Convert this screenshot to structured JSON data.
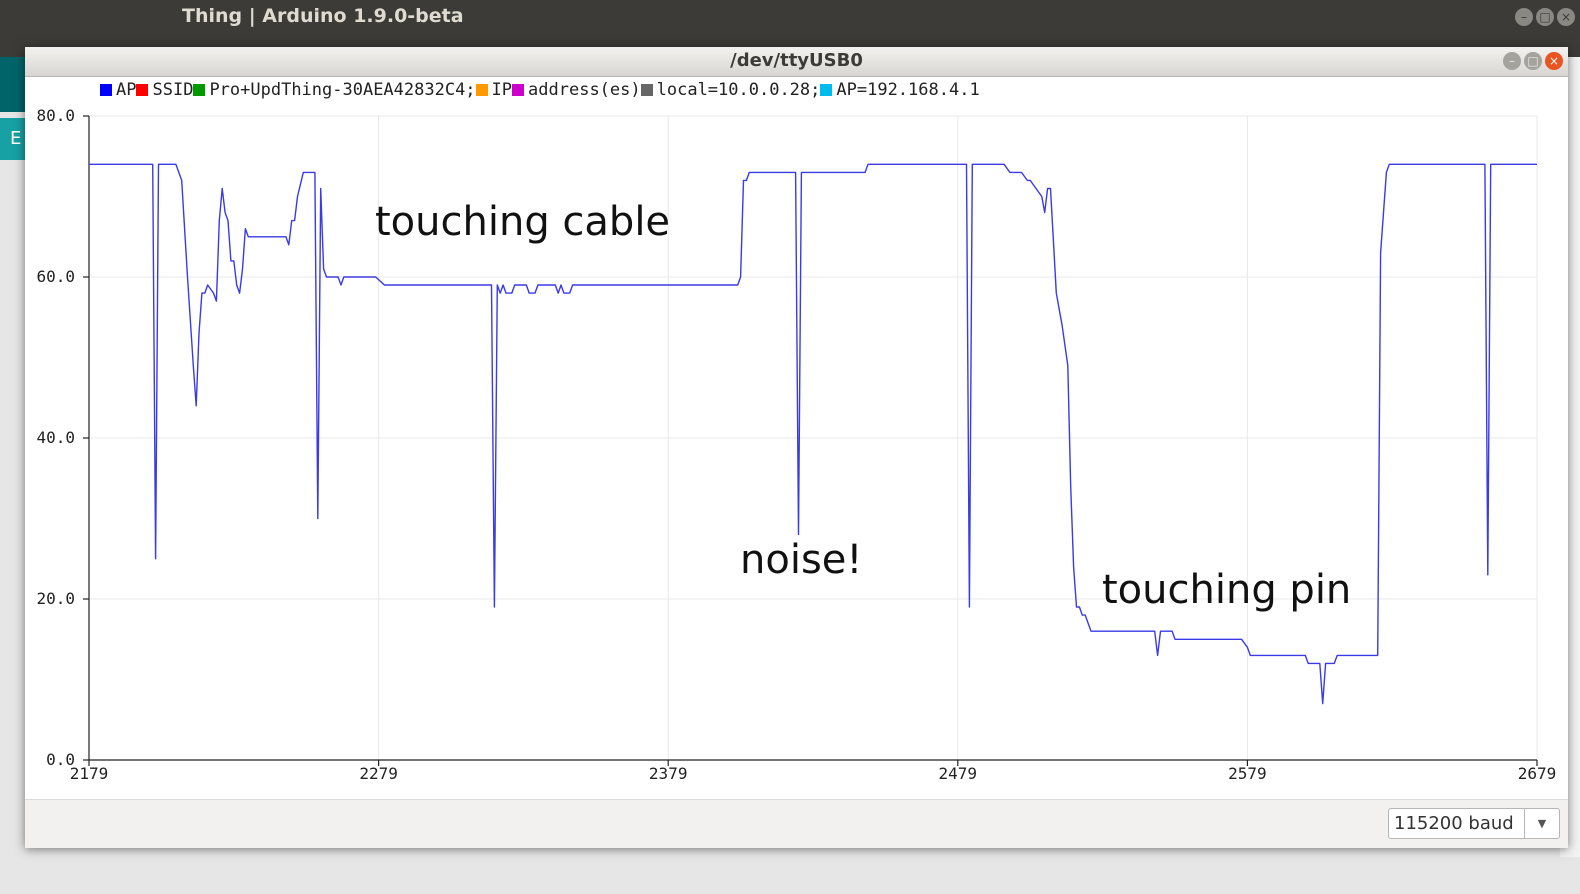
{
  "ide": {
    "title": "Thing | Arduino 1.9.0-beta",
    "side_tab_label": "E"
  },
  "plotter": {
    "title": "/dev/ttyUSB0",
    "window_buttons": {
      "minimize": "–",
      "maximize": "□",
      "close": "×"
    },
    "legend": [
      {
        "label": "AP",
        "color": "#0000ff"
      },
      {
        "label": "SSID",
        "color": "#ff0000"
      },
      {
        "label": "Pro+UpdThing-30AEA42832C4;",
        "color": "#009900"
      },
      {
        "label": "IP",
        "color": "#ff9900"
      },
      {
        "label": "address(es)",
        "color": "#cc00cc"
      },
      {
        "label": "local=10.0.0.28;",
        "color": "#666666"
      },
      {
        "label": "AP=192.168.4.1",
        "color": "#00bbee"
      }
    ],
    "baud": {
      "value": "115200 baud",
      "arrow": "▼"
    }
  },
  "annotations": {
    "touching_cable": "touching cable",
    "noise": "noise!",
    "touching_pin": "touching pin"
  },
  "chart_data": {
    "type": "line",
    "xlim": [
      2179,
      2679
    ],
    "ylim": [
      0,
      80
    ],
    "x_ticks": [
      "2179",
      "2279",
      "2379",
      "2479",
      "2579",
      "2679"
    ],
    "y_ticks": [
      "0.0",
      "20.0",
      "40.0",
      "60.0",
      "80.0"
    ],
    "grid": true,
    "legend_position": "top-left",
    "series": [
      {
        "name": "AP",
        "color": "#3a3ae6",
        "points": [
          [
            2179,
            74
          ],
          [
            2201,
            74
          ],
          [
            2202,
            25
          ],
          [
            2203,
            74
          ],
          [
            2209,
            74
          ],
          [
            2211,
            72
          ],
          [
            2213,
            60
          ],
          [
            2215,
            49
          ],
          [
            2216,
            44
          ],
          [
            2217,
            53
          ],
          [
            2218,
            58
          ],
          [
            2219,
            58
          ],
          [
            2220,
            59
          ],
          [
            2222,
            58
          ],
          [
            2223,
            57
          ],
          [
            2224,
            67
          ],
          [
            2225,
            71
          ],
          [
            2226,
            68
          ],
          [
            2227,
            67
          ],
          [
            2228,
            62
          ],
          [
            2229,
            62
          ],
          [
            2230,
            59
          ],
          [
            2231,
            58
          ],
          [
            2232,
            61
          ],
          [
            2233,
            66
          ],
          [
            2234,
            65
          ],
          [
            2247,
            65
          ],
          [
            2248,
            64
          ],
          [
            2249,
            67
          ],
          [
            2250,
            67
          ],
          [
            2251,
            70
          ],
          [
            2253,
            73
          ],
          [
            2257,
            73
          ],
          [
            2258,
            30
          ],
          [
            2259,
            71
          ],
          [
            2260,
            61
          ],
          [
            2261,
            60
          ],
          [
            2265,
            60
          ],
          [
            2266,
            59
          ],
          [
            2267,
            60
          ],
          [
            2278,
            60
          ],
          [
            2281,
            59
          ],
          [
            2316,
            59
          ],
          [
            2318,
            59
          ],
          [
            2319,
            19
          ],
          [
            2320,
            59
          ],
          [
            2321,
            58
          ],
          [
            2322,
            59
          ],
          [
            2323,
            58
          ],
          [
            2325,
            58
          ],
          [
            2326,
            59
          ],
          [
            2329,
            59
          ],
          [
            2330,
            59
          ],
          [
            2331,
            58
          ],
          [
            2333,
            58
          ],
          [
            2334,
            59
          ],
          [
            2340,
            59
          ],
          [
            2341,
            58
          ],
          [
            2342,
            59
          ],
          [
            2343,
            58
          ],
          [
            2345,
            58
          ],
          [
            2346,
            59
          ],
          [
            2403,
            59
          ],
          [
            2404,
            60
          ],
          [
            2405,
            72
          ],
          [
            2406,
            72
          ],
          [
            2407,
            73
          ],
          [
            2423,
            73
          ],
          [
            2424,
            28
          ],
          [
            2425,
            73
          ],
          [
            2447,
            73
          ],
          [
            2448,
            74
          ],
          [
            2482,
            74
          ],
          [
            2483,
            19
          ],
          [
            2484,
            74
          ],
          [
            2495,
            74
          ],
          [
            2497,
            73
          ],
          [
            2501,
            73
          ],
          [
            2503,
            72
          ],
          [
            2504,
            72
          ],
          [
            2506,
            71
          ],
          [
            2508,
            70
          ],
          [
            2509,
            68
          ],
          [
            2510,
            71
          ],
          [
            2511,
            71
          ],
          [
            2513,
            58
          ],
          [
            2515,
            54
          ],
          [
            2517,
            49
          ],
          [
            2518,
            34
          ],
          [
            2519,
            24
          ],
          [
            2520,
            19
          ],
          [
            2521,
            19
          ],
          [
            2522,
            18
          ],
          [
            2523,
            18
          ],
          [
            2524,
            17
          ],
          [
            2525,
            16
          ],
          [
            2547,
            16
          ],
          [
            2548,
            13
          ],
          [
            2549,
            16
          ],
          [
            2553,
            16
          ],
          [
            2554,
            15
          ],
          [
            2577,
            15
          ],
          [
            2579,
            14
          ],
          [
            2580,
            13
          ],
          [
            2599,
            13
          ],
          [
            2600,
            12
          ],
          [
            2604,
            12
          ],
          [
            2605,
            7
          ],
          [
            2606,
            12
          ],
          [
            2609,
            12
          ],
          [
            2610,
            13
          ],
          [
            2624,
            13
          ],
          [
            2625,
            63
          ],
          [
            2626,
            68
          ],
          [
            2627,
            73
          ],
          [
            2628,
            74
          ],
          [
            2661,
            74
          ],
          [
            2662,
            23
          ],
          [
            2663,
            74
          ],
          [
            2679,
            74
          ]
        ]
      }
    ]
  }
}
